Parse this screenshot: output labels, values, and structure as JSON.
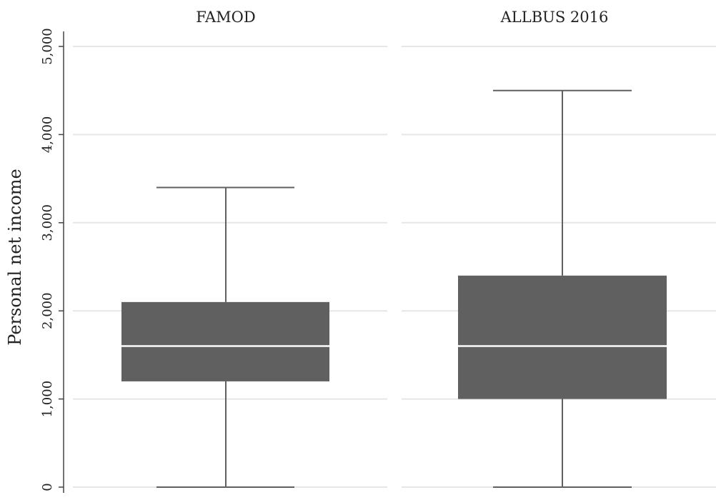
{
  "chart_data": {
    "type": "box",
    "ylabel": "Personal net income",
    "ylim": [
      0,
      5000
    ],
    "yticks": [
      0,
      1000,
      2000,
      3000,
      4000,
      5000
    ],
    "ytick_labels": [
      "0",
      "1,000",
      "2,000",
      "3,000",
      "4,000",
      "5,000"
    ],
    "grid": true,
    "colors": {
      "box": "#606060",
      "whisker": "#606060",
      "median": "#ffffff",
      "grid": "#e6e6e6"
    },
    "panels": [
      {
        "title": "FAMOD",
        "min": 0,
        "q1": 1200,
        "median": 1600,
        "q3": 2100,
        "max": 3400
      },
      {
        "title": "ALLBUS 2016",
        "min": 0,
        "q1": 1000,
        "median": 1600,
        "q3": 2400,
        "max": 4500
      }
    ]
  }
}
